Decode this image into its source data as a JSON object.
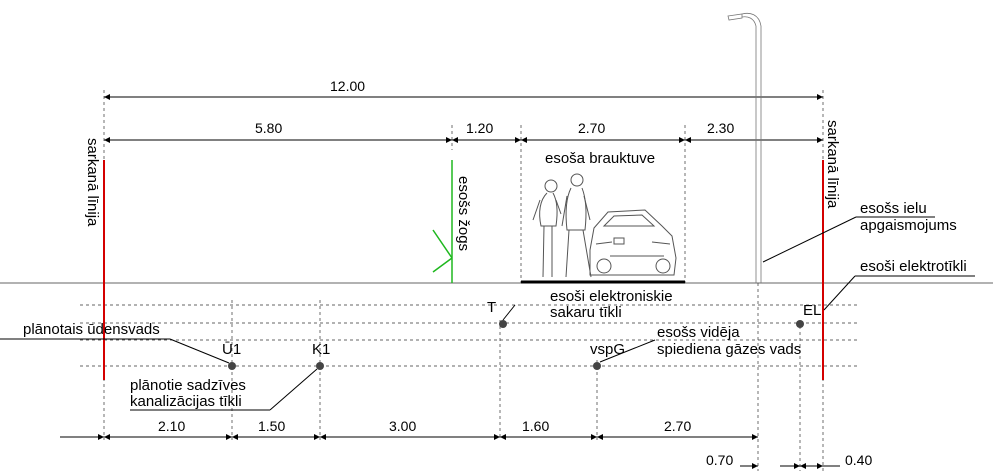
{
  "dimensions": {
    "total": "12.00",
    "top_segments": [
      "5.80",
      "1.20",
      "2.70",
      "2.30"
    ],
    "bottom_segments": [
      "2.10",
      "1.50",
      "3.00",
      "1.60",
      "2.70"
    ],
    "small_left": "0.70",
    "small_right": "0.40"
  },
  "labels": {
    "red_line": "sarkanā līnija",
    "fence": "esošs žogs",
    "road": "esoša brauktuve",
    "lighting_line1": "esošs ielu",
    "lighting_line2": "apgaismojums",
    "electric": "esoši elektrotīkli",
    "telecom_line1": "esoši elektroniskie",
    "telecom_line2": "sakaru tīkli",
    "water": "plānotais ūdensvads",
    "gas_line1": "esošs vidēja",
    "gas_line2": "spiediena gāzes vads",
    "sewer_line1": "plānotie sadzīves",
    "sewer_line2": "kanalizācijas tīkli"
  },
  "markers": {
    "water": "Ū1",
    "sewer": "K1",
    "telecom": "T",
    "gas": "vspG",
    "electric": "EL"
  },
  "colors": {
    "red_line": "#d40000",
    "fence": "#1fb81f"
  }
}
